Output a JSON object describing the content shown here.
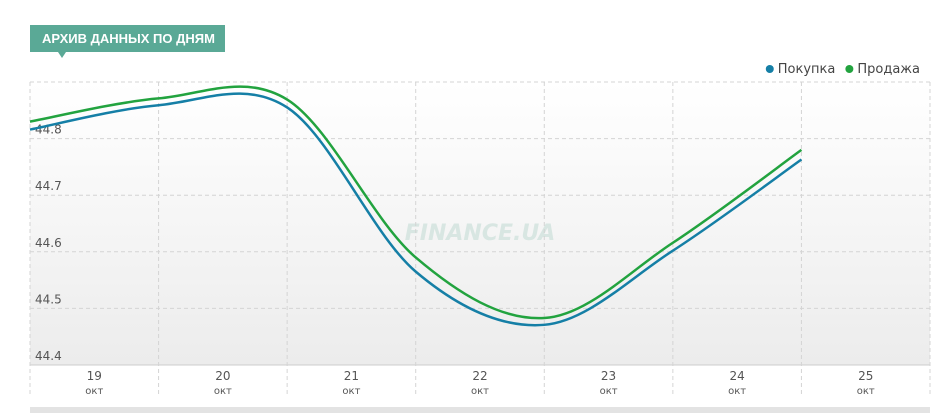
{
  "header": {
    "title": "АРХИВ ДАННЫХ ПО ДНЯМ"
  },
  "chart_data": {
    "type": "line",
    "watermark": "FINANCE.UA",
    "categories": [
      "19",
      "20",
      "21",
      "22",
      "23",
      "24",
      "25"
    ],
    "x_sublabels": [
      "окт",
      "окт",
      "окт",
      "окт",
      "окт",
      "окт",
      "окт"
    ],
    "series": [
      {
        "name": "Покупка",
        "color": "#157fa6",
        "values": [
          44.816,
          44.859,
          44.855,
          44.565,
          44.471,
          44.602,
          44.763
        ]
      },
      {
        "name": "Продажа",
        "color": "#22a33f",
        "values": [
          44.83,
          44.871,
          44.869,
          44.59,
          44.483,
          44.616,
          44.78
        ]
      }
    ],
    "ylim": [
      44.4,
      44.9
    ],
    "yticks": [
      44.4,
      44.5,
      44.6,
      44.7,
      44.8
    ],
    "grid": true,
    "legend": "top-right"
  }
}
